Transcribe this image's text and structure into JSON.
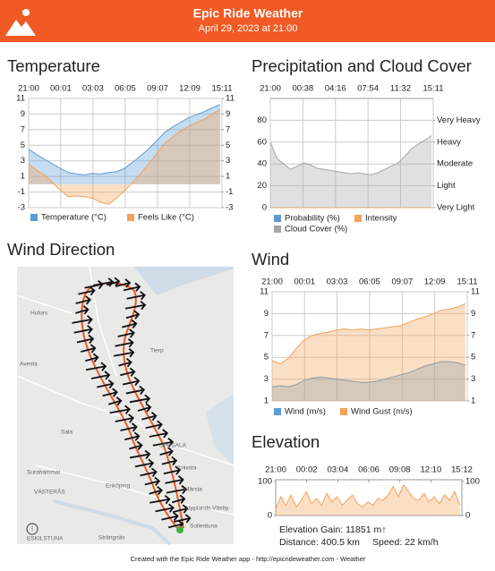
{
  "header": {
    "title": "Epic Ride Weather",
    "subtitle": "April 29, 2023 at 21:00"
  },
  "chart_data": [
    {
      "type": "area",
      "title": "Temperature",
      "x": [
        0,
        0.75,
        1.5,
        2.25,
        3,
        3.75,
        4.5,
        5.25,
        6,
        6.75,
        7.5,
        8.25,
        9,
        9.75,
        10.5,
        11.25,
        12,
        12.75,
        13.5,
        14.25,
        15,
        15.75,
        16.5,
        17.25,
        18
      ],
      "xlim": [
        0,
        18.18
      ],
      "xticks": [
        {
          "value": 0,
          "label": "21:00"
        },
        {
          "value": 3.02,
          "label": "00:01"
        },
        {
          "value": 6.05,
          "label": "03:03"
        },
        {
          "value": 9.08,
          "label": "06:05"
        },
        {
          "value": 12.12,
          "label": "09:07"
        },
        {
          "value": 15.15,
          "label": "12:09"
        },
        {
          "value": 18.18,
          "label": "15:11"
        }
      ],
      "ylim": [
        -3,
        11
      ],
      "yticks": [
        11,
        9,
        7,
        5,
        3,
        1,
        -1,
        -3
      ],
      "y2lim": [
        -3,
        11
      ],
      "y2ticks": [
        11,
        9,
        7,
        5,
        3,
        1,
        -1,
        -3
      ],
      "grid": true,
      "series": [
        {
          "name": "Temperature (°C)",
          "color": "#5b9bd5",
          "values": [
            4.5,
            3.8,
            3.2,
            2.6,
            2.0,
            1.5,
            1.3,
            1.2,
            1.4,
            1.3,
            1.5,
            1.6,
            2.0,
            2.8,
            3.6,
            4.5,
            5.5,
            6.6,
            7.3,
            7.9,
            8.5,
            8.9,
            9.3,
            9.8,
            10.2
          ]
        },
        {
          "name": "Feels Like (°C)",
          "color": "#f4a259",
          "values": [
            2.6,
            1.8,
            1.2,
            0.2,
            -0.8,
            -1.6,
            -1.5,
            -1.6,
            -1.8,
            -2.3,
            -2.6,
            -1.8,
            -0.9,
            0.2,
            1.3,
            2.6,
            3.8,
            5.2,
            6.0,
            6.8,
            7.4,
            7.9,
            8.3,
            9.0,
            9.6
          ]
        }
      ]
    },
    {
      "type": "area",
      "title": "Precipitation and Cloud Cover",
      "x": [
        0,
        0.75,
        1.5,
        2.25,
        3,
        3.75,
        4.5,
        5.25,
        6,
        6.75,
        7.5,
        8.25,
        9,
        9.75,
        10.5,
        11.25,
        12,
        12.75,
        13.5,
        14.25,
        15,
        15.75,
        16.5,
        17.25,
        18
      ],
      "xlim": [
        0,
        18.18
      ],
      "xticks": [
        {
          "value": 0,
          "label": "21:00"
        },
        {
          "value": 3.63,
          "label": "00:38"
        },
        {
          "value": 7.27,
          "label": "04:16"
        },
        {
          "value": 10.9,
          "label": "07:54"
        },
        {
          "value": 14.53,
          "label": "11:32"
        },
        {
          "value": 18.18,
          "label": "15:11"
        }
      ],
      "ylim": [
        0,
        100
      ],
      "yticks": [
        80,
        60,
        40,
        20,
        0
      ],
      "y2lim": [
        0,
        100
      ],
      "y2ticks": [
        {
          "value": 80,
          "label": "Very Heavy"
        },
        {
          "value": 60,
          "label": "Heavy"
        },
        {
          "value": 40,
          "label": "Moderate"
        },
        {
          "value": 20,
          "label": "Light"
        },
        {
          "value": 0,
          "label": "Very Light"
        }
      ],
      "grid": true,
      "series": [
        {
          "name": "Probability (%)",
          "color": "#5b9bd5",
          "values": [
            0,
            0,
            0,
            0,
            0,
            0,
            0,
            0,
            0,
            0,
            0,
            0,
            0,
            0,
            0,
            0,
            0,
            0,
            0,
            0,
            0,
            0,
            0,
            0,
            0
          ]
        },
        {
          "name": "Intensity",
          "color": "#f4a259",
          "axis": "y2",
          "values": [
            0,
            0,
            0,
            0,
            0,
            0,
            0,
            0,
            0,
            0,
            0,
            0,
            0,
            0,
            0,
            0,
            0,
            0,
            0,
            0,
            0,
            0,
            0,
            0,
            0
          ]
        },
        {
          "name": "Cloud Cover (%)",
          "color": "#a6a6a6",
          "values": [
            60,
            45,
            40,
            35,
            38,
            41,
            39,
            36,
            35,
            34,
            33,
            32,
            31,
            32,
            31,
            30,
            32,
            35,
            38,
            41,
            47,
            54,
            58,
            62,
            66
          ]
        }
      ]
    },
    {
      "type": "area",
      "title": "Wind",
      "x": [
        0,
        0.75,
        1.5,
        2.25,
        3,
        3.75,
        4.5,
        5.25,
        6,
        6.75,
        7.5,
        8.25,
        9,
        9.75,
        10.5,
        11.25,
        12,
        12.75,
        13.5,
        14.25,
        15,
        15.75,
        16.5,
        17.25,
        18
      ],
      "xlim": [
        0,
        18.18
      ],
      "xticks": [
        {
          "value": 0,
          "label": "21:00"
        },
        {
          "value": 3.02,
          "label": "00:01"
        },
        {
          "value": 6.05,
          "label": "03:03"
        },
        {
          "value": 9.08,
          "label": "06:05"
        },
        {
          "value": 12.12,
          "label": "09:07"
        },
        {
          "value": 15.15,
          "label": "12:09"
        },
        {
          "value": 18.18,
          "label": "15:11"
        }
      ],
      "ylim": [
        1,
        11
      ],
      "yticks": [
        11,
        9,
        7,
        5,
        3,
        1
      ],
      "y2lim": [
        1,
        11
      ],
      "y2ticks": [
        11,
        9,
        7,
        5,
        3,
        1
      ],
      "grid": true,
      "series": [
        {
          "name": "Wind (m/s)",
          "color": "#5b9bd5",
          "values": [
            2.3,
            2.4,
            2.3,
            2.5,
            2.9,
            3.1,
            3.2,
            3.1,
            3.0,
            2.9,
            2.8,
            2.7,
            2.7,
            2.8,
            3.0,
            3.2,
            3.4,
            3.6,
            3.9,
            4.2,
            4.4,
            4.6,
            4.6,
            4.5,
            4.3
          ]
        },
        {
          "name": "Wind Gust (m/s)",
          "color": "#f4a259",
          "values": [
            4.7,
            4.4,
            4.9,
            5.8,
            6.6,
            7.0,
            7.2,
            7.3,
            7.5,
            7.6,
            7.5,
            7.6,
            7.5,
            7.6,
            7.7,
            7.8,
            7.9,
            8.2,
            8.5,
            8.7,
            9.0,
            9.3,
            9.4,
            9.6,
            9.9
          ]
        }
      ]
    },
    {
      "type": "area",
      "title": "Elevation",
      "x": [
        0,
        0.5,
        1,
        1.5,
        2,
        2.5,
        3,
        3.5,
        4,
        4.5,
        5,
        5.5,
        6,
        6.5,
        7,
        7.5,
        8,
        8.5,
        9,
        9.5,
        10,
        10.5,
        11,
        11.5,
        12,
        12.5,
        13,
        13.5,
        14,
        14.5,
        15,
        15.5,
        16,
        16.5,
        17,
        17.5,
        18
      ],
      "xlim": [
        0,
        18.2
      ],
      "xticks": [
        {
          "value": 0,
          "label": "21:00"
        },
        {
          "value": 3.03,
          "label": "00:02"
        },
        {
          "value": 6.07,
          "label": "03:04"
        },
        {
          "value": 9.1,
          "label": "06:06"
        },
        {
          "value": 12.13,
          "label": "09:08"
        },
        {
          "value": 15.17,
          "label": "12:10"
        },
        {
          "value": 18.2,
          "label": "15:12"
        }
      ],
      "ylim": [
        0,
        105
      ],
      "yticks": [
        100,
        0
      ],
      "y2lim": [
        0,
        105
      ],
      "y2ticks": [
        100,
        0
      ],
      "grid": false,
      "color": "#f4a259",
      "values": [
        20,
        55,
        30,
        60,
        25,
        45,
        70,
        35,
        50,
        30,
        65,
        40,
        55,
        30,
        45,
        60,
        35,
        25,
        40,
        30,
        50,
        45,
        60,
        85,
        55,
        90,
        70,
        50,
        45,
        65,
        40,
        55,
        35,
        60,
        45,
        70,
        30
      ],
      "stats": {
        "gain": "Elevation Gain: 11851 m↑",
        "distance": "Distance: 400.5 km",
        "speed": "Speed: 22 km/h"
      }
    }
  ],
  "map": {
    "title": "Wind Direction",
    "labels": [
      "Hofors",
      "Avesta",
      "Sala",
      "Surahammar",
      "VÄSTERÅS",
      "Enköping",
      "ESKILSTUNA",
      "Strängnäs",
      "UPPSALA",
      "Knivsta",
      "Märsta",
      "Upplands Väsby",
      "Sollentuna",
      "Tierp"
    ]
  },
  "footer": "Created with the Epic Ride Weather app - http://epicrideweather.com -  Weather"
}
